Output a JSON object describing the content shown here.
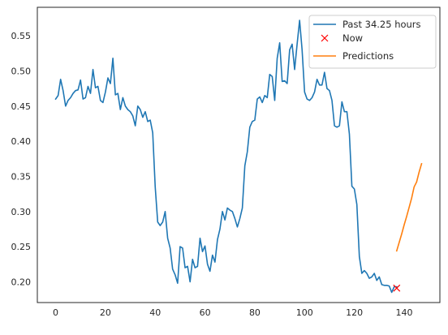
{
  "chart_data": {
    "type": "line",
    "title": "",
    "xlabel": "",
    "ylabel": "",
    "xlim": [
      -7.35,
      154.35
    ],
    "ylim": [
      0.1705,
      0.5905
    ],
    "xticks": [
      0,
      20,
      40,
      60,
      80,
      100,
      120,
      140
    ],
    "xtick_labels": [
      "0",
      "20",
      "40",
      "60",
      "80",
      "100",
      "120",
      "140"
    ],
    "yticks": [
      0.2,
      0.25,
      0.3,
      0.35,
      0.4,
      0.45,
      0.5,
      0.55
    ],
    "ytick_labels": [
      "0.20",
      "0.25",
      "0.30",
      "0.35",
      "0.40",
      "0.45",
      "0.50",
      "0.55"
    ],
    "grid": false,
    "legend_position": "top-right",
    "colors": {
      "past": "#1f77b4",
      "now": "#ff0000",
      "predictions": "#ff7f0e",
      "axes": "#262626"
    },
    "series": [
      {
        "name": "Past 34.25 hours",
        "kind": "line",
        "x": [
          0,
          1,
          2,
          3,
          4,
          5,
          6,
          7,
          8,
          9,
          10,
          11,
          12,
          13,
          14,
          15,
          16,
          17,
          18,
          19,
          20,
          21,
          22,
          23,
          24,
          25,
          26,
          27,
          28,
          29,
          30,
          31,
          32,
          33,
          34,
          35,
          36,
          37,
          38,
          39,
          40,
          41,
          42,
          43,
          44,
          45,
          46,
          47,
          48,
          49,
          50,
          51,
          52,
          53,
          54,
          55,
          56,
          57,
          58,
          59,
          60,
          61,
          62,
          63,
          64,
          65,
          66,
          67,
          68,
          69,
          70,
          71,
          72,
          73,
          74,
          75,
          76,
          77,
          78,
          79,
          80,
          81,
          82,
          83,
          84,
          85,
          86,
          87,
          88,
          89,
          90,
          91,
          92,
          93,
          94,
          95,
          96,
          97,
          98,
          99,
          100,
          101,
          102,
          103,
          104,
          105,
          106,
          107,
          108,
          109,
          110,
          111,
          112,
          113,
          114,
          115,
          116,
          117,
          118,
          119,
          120,
          121,
          122,
          123,
          124,
          125,
          126,
          127,
          128,
          129,
          130,
          131,
          132,
          133,
          134,
          135,
          136,
          137
        ],
        "y": [
          0.46,
          0.465,
          0.488,
          0.472,
          0.45,
          0.458,
          0.462,
          0.468,
          0.472,
          0.473,
          0.487,
          0.46,
          0.462,
          0.478,
          0.468,
          0.502,
          0.476,
          0.478,
          0.458,
          0.455,
          0.47,
          0.49,
          0.482,
          0.518,
          0.466,
          0.468,
          0.445,
          0.462,
          0.45,
          0.445,
          0.442,
          0.436,
          0.422,
          0.45,
          0.445,
          0.434,
          0.442,
          0.428,
          0.43,
          0.412,
          0.335,
          0.285,
          0.28,
          0.285,
          0.3,
          0.262,
          0.248,
          0.218,
          0.21,
          0.198,
          0.25,
          0.248,
          0.22,
          0.222,
          0.2,
          0.232,
          0.22,
          0.222,
          0.262,
          0.243,
          0.251,
          0.225,
          0.215,
          0.238,
          0.228,
          0.26,
          0.275,
          0.3,
          0.288,
          0.305,
          0.302,
          0.3,
          0.29,
          0.278,
          0.29,
          0.305,
          0.365,
          0.385,
          0.42,
          0.428,
          0.43,
          0.46,
          0.463,
          0.455,
          0.465,
          0.462,
          0.495,
          0.492,
          0.458,
          0.518,
          0.54,
          0.485,
          0.486,
          0.482,
          0.53,
          0.538,
          0.502,
          0.538,
          0.572,
          0.53,
          0.47,
          0.46,
          0.458,
          0.462,
          0.47,
          0.488,
          0.48,
          0.48,
          0.498,
          0.475,
          0.472,
          0.458,
          0.422,
          0.42,
          0.422,
          0.456,
          0.442,
          0.442,
          0.41,
          0.336,
          0.332,
          0.31,
          0.236,
          0.212,
          0.216,
          0.212,
          0.205,
          0.207,
          0.212,
          0.202,
          0.207,
          0.196,
          0.195,
          0.195,
          0.194,
          0.185,
          0.193,
          0.193
        ]
      },
      {
        "name": "Now",
        "kind": "marker",
        "x": [
          137
        ],
        "y": [
          0.191
        ]
      },
      {
        "name": "Predictions",
        "kind": "line",
        "x": [
          137,
          138,
          139,
          140,
          141,
          142,
          143,
          144,
          145,
          146,
          147
        ],
        "y": [
          0.244,
          0.256,
          0.268,
          0.281,
          0.293,
          0.306,
          0.319,
          0.335,
          0.342,
          0.356,
          0.368
        ]
      }
    ]
  }
}
